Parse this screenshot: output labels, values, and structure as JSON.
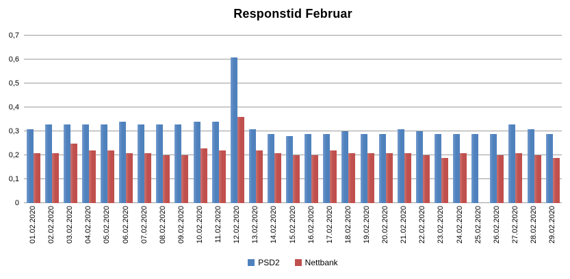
{
  "title": "Responstid Februar",
  "colors": {
    "psd2": "#4f81bd",
    "nettbank": "#c0504d",
    "gridline": "#9b9b9b",
    "text": "#000000",
    "background": "#ffffff"
  },
  "y_axis": {
    "tick_labels": [
      "0",
      "0,1",
      "0,2",
      "0,3",
      "0,4",
      "0,5",
      "0,6",
      "0,7"
    ]
  },
  "legend": {
    "items": [
      {
        "label": "PSD2",
        "color": "#4f81bd"
      },
      {
        "label": "Nettbank",
        "color": "#c0504d"
      }
    ]
  },
  "chart_data": {
    "type": "bar",
    "title": "Responstid Februar",
    "xlabel": "",
    "ylabel": "",
    "ylim": [
      0,
      0.7
    ],
    "ytick_step": 0.1,
    "decimal_separator": ",",
    "grid": true,
    "legend_position": "bottom",
    "categories": [
      "01.02.2020",
      "02.02.2020",
      "03.02.2020",
      "04.02.2020",
      "05.02.2020",
      "06.02.2020",
      "07.02.2020",
      "08.02.2020",
      "09.02.2020",
      "10.02.2020",
      "11.02.2020",
      "12.02.2020",
      "13.02.2020",
      "14.02.2020",
      "15.02.2020",
      "16.02.2020",
      "17.02.2020",
      "18.02.2020",
      "19.02.2020",
      "20.02.2020",
      "21.02.2020",
      "22.02.2020",
      "23.02.2020",
      "24.02.2020",
      "25.02.2020",
      "26.02.2020",
      "27.02.2020",
      "28.02.2020",
      "29.02.2020"
    ],
    "series": [
      {
        "name": "PSD2",
        "color": "#4f81bd",
        "values": [
          0.31,
          0.33,
          0.33,
          0.33,
          0.33,
          0.34,
          0.33,
          0.33,
          0.33,
          0.34,
          0.34,
          0.61,
          0.31,
          0.29,
          0.28,
          0.29,
          0.29,
          0.3,
          0.29,
          0.29,
          0.31,
          0.3,
          0.29,
          0.29,
          0.29,
          0.29,
          0.33,
          0.31,
          0.29
        ]
      },
      {
        "name": "Nettbank",
        "color": "#c0504d",
        "values": [
          0.21,
          0.21,
          0.25,
          0.22,
          0.22,
          0.21,
          0.21,
          0.2,
          0.2,
          0.23,
          0.22,
          0.36,
          0.22,
          0.21,
          0.2,
          0.2,
          0.22,
          0.21,
          0.21,
          0.21,
          0.21,
          0.2,
          0.19,
          0.21,
          0,
          0.2,
          0.21,
          0.2,
          0.19
        ]
      }
    ]
  }
}
